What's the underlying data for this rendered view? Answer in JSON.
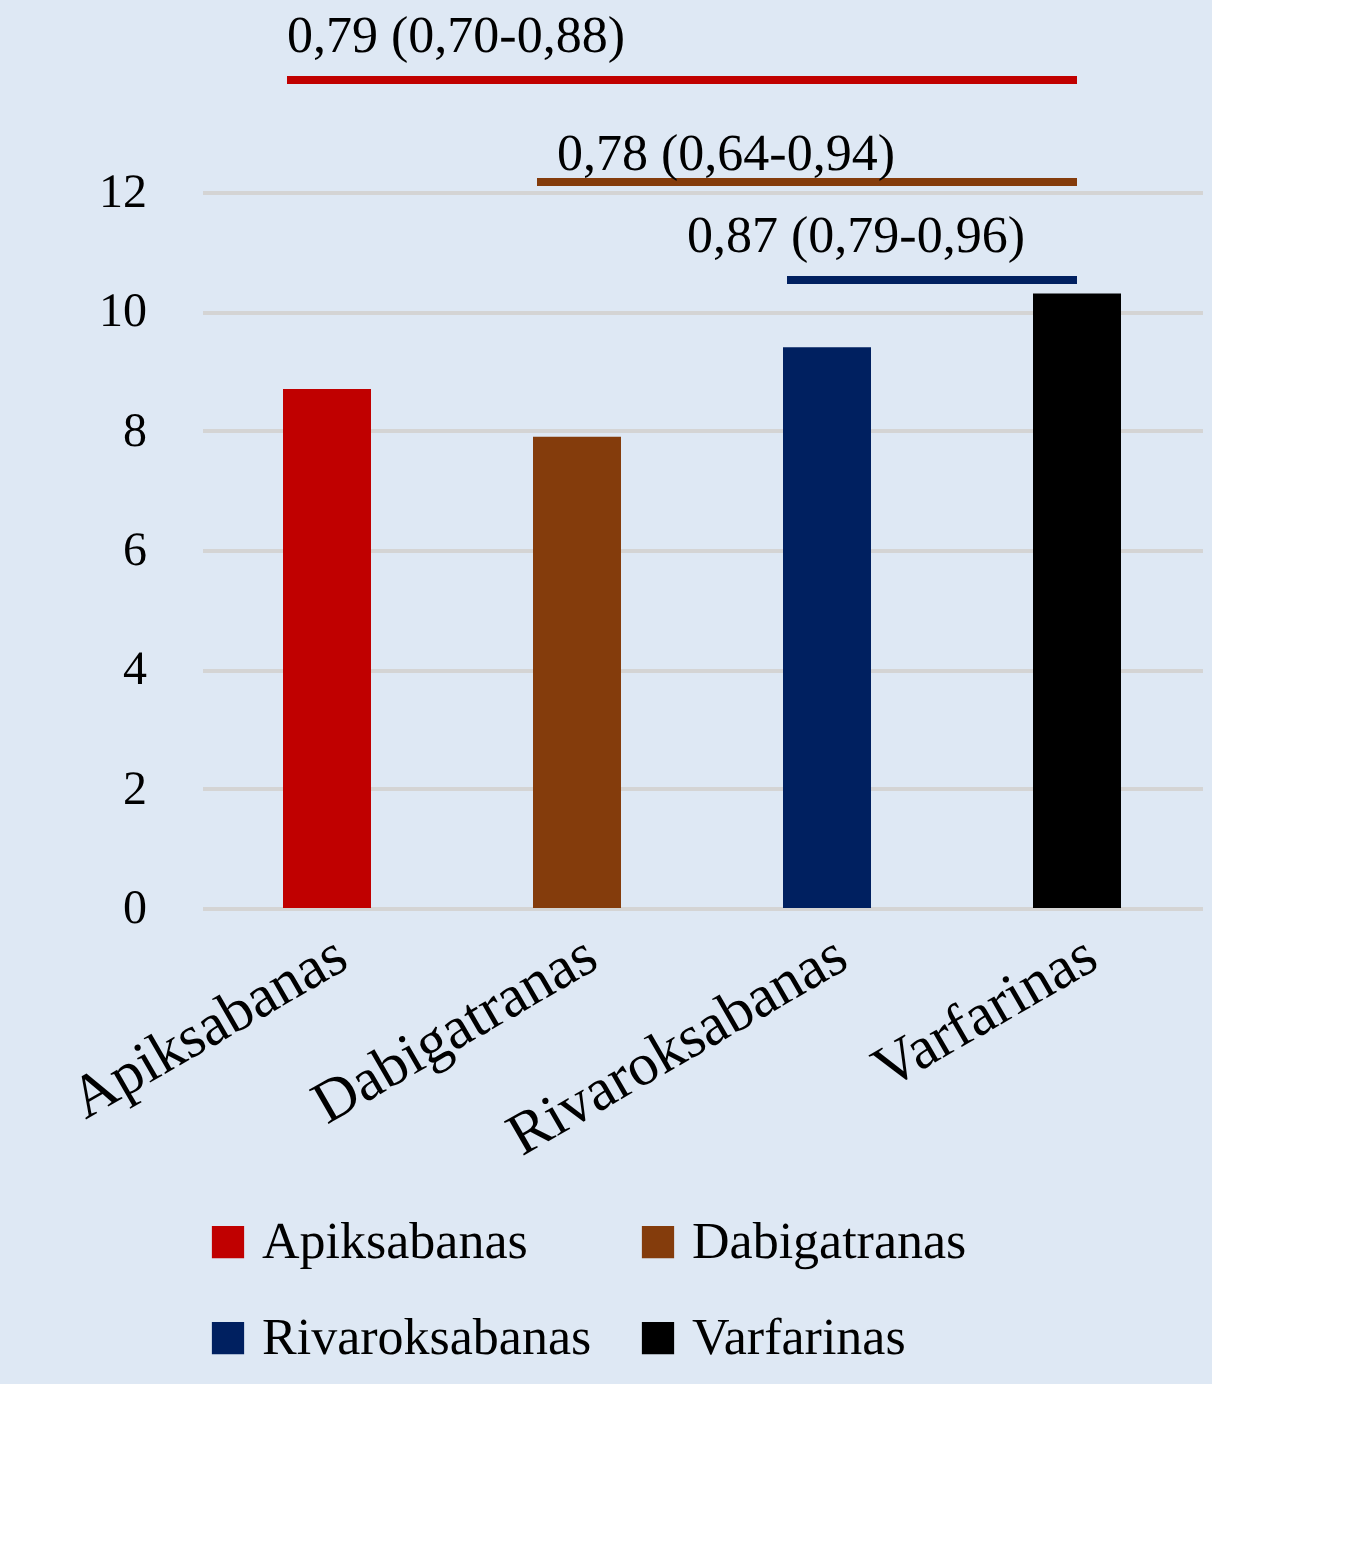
{
  "chart_data": {
    "type": "bar",
    "categories": [
      "Apiksabanas",
      "Dabigatranas",
      "Rivaroksabanas",
      "Varfarinas"
    ],
    "series": [
      {
        "name": "Apiksabanas",
        "color": "#c00000",
        "values": [
          8.7,
          null,
          null,
          null
        ]
      },
      {
        "name": "Dabigatranas",
        "color": "#843c0c",
        "values": [
          null,
          7.9,
          null,
          null
        ]
      },
      {
        "name": "Rivaroksabanas",
        "color": "#002060",
        "values": [
          null,
          null,
          9.4,
          null
        ]
      },
      {
        "name": "Varfarinas",
        "color": "#000000",
        "values": [
          null,
          null,
          null,
          10.3
        ]
      }
    ],
    "ylim": [
      0,
      12
    ],
    "yticks": [
      0,
      2,
      4,
      6,
      8,
      10,
      12
    ],
    "grid": "y",
    "legend": "bottom",
    "annotations": [
      "0,79 (0,70-0,88)",
      "0,78 (0,64-0,94)",
      "0,87 (0,79-0,96)"
    ]
  }
}
